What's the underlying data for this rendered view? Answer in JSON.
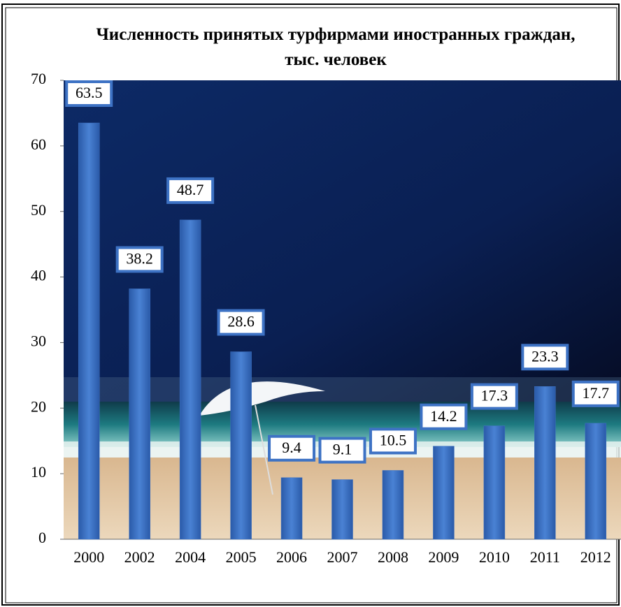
{
  "chart_data": {
    "type": "bar",
    "title": "Численность принятых турфирмами иностранных граждан, тыс. человек",
    "categories": [
      "2000",
      "2002",
      "2004",
      "2005",
      "2006",
      "2007",
      "2008",
      "2009",
      "2010",
      "2011",
      "2012"
    ],
    "values": [
      63.5,
      38.2,
      48.7,
      28.6,
      9.4,
      9.1,
      10.5,
      14.2,
      17.3,
      23.3,
      17.7
    ],
    "color": "#3d72c4",
    "ylim": [
      0,
      70
    ],
    "yticks": [
      0,
      10,
      20,
      30,
      40,
      50,
      60,
      70
    ],
    "grid": false
  }
}
